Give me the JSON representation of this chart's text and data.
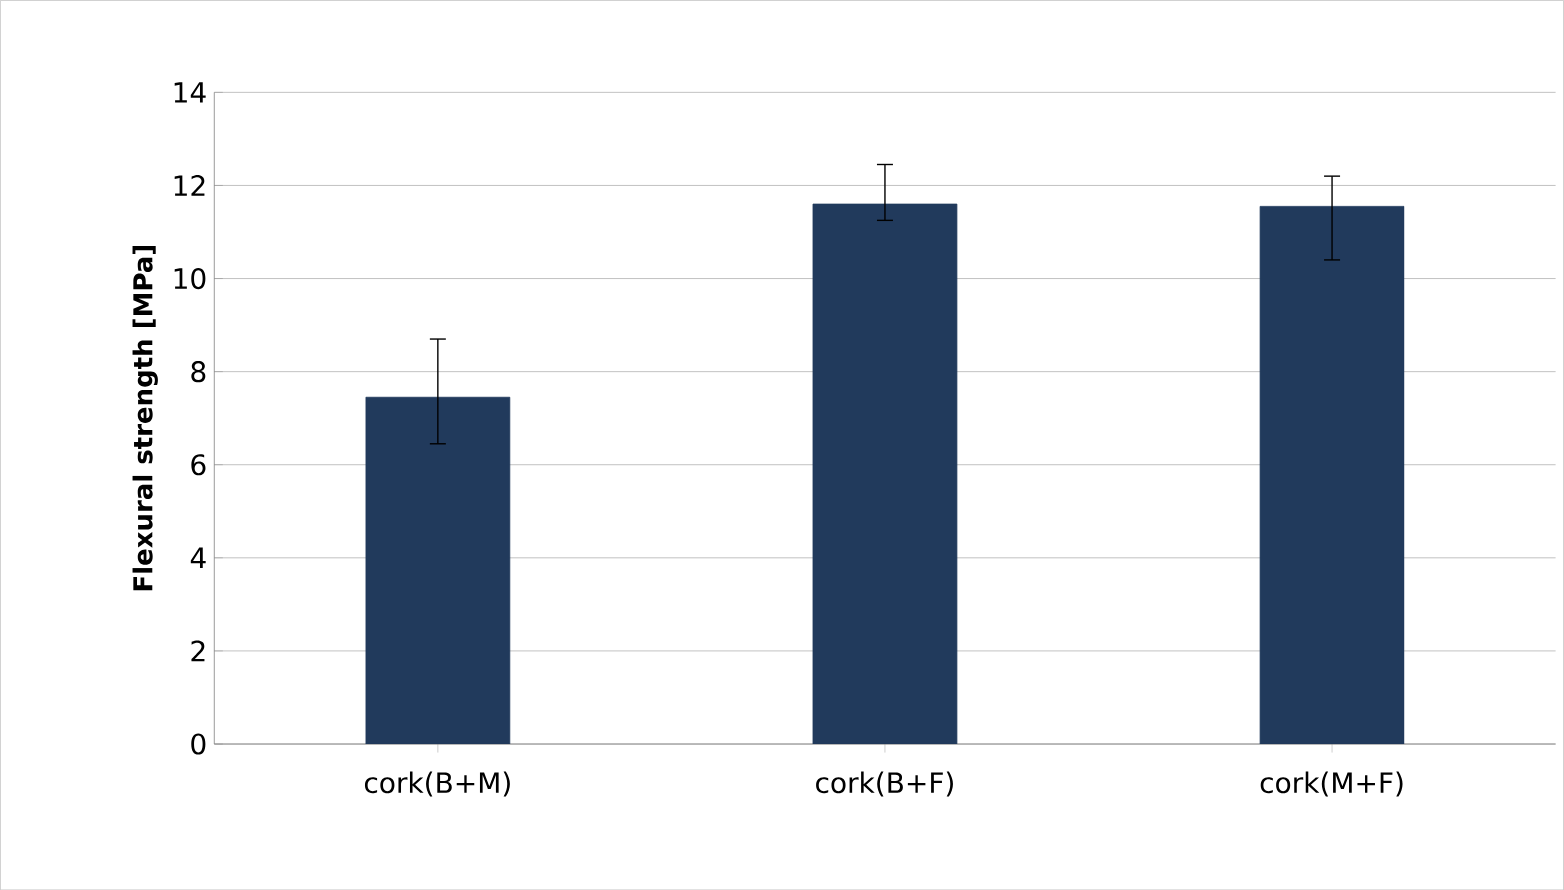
{
  "chart_data": {
    "type": "bar",
    "ylabel": "Flexural strength [MPa]",
    "categories": [
      "cork(B+M)",
      "cork(B+F)",
      "cork(M+F)"
    ],
    "values": [
      7.45,
      11.6,
      11.55
    ],
    "errors": [
      [
        6.45,
        8.7
      ],
      [
        11.25,
        12.45
      ],
      [
        10.4,
        12.2
      ]
    ],
    "color": "#213a5c",
    "ylim": [
      0,
      14
    ],
    "yticks": [
      0,
      2,
      4,
      6,
      8,
      10,
      12,
      14
    ],
    "grid": "y"
  }
}
